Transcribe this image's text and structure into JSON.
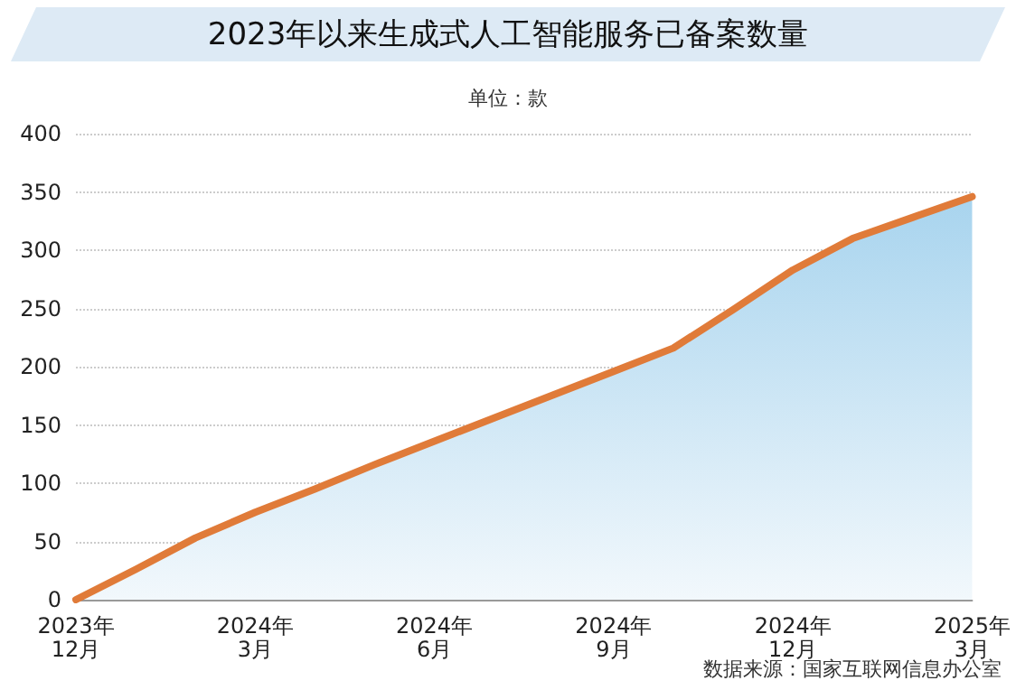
{
  "chart_data": {
    "type": "area",
    "title": "2023年以来生成式人工智能服务已备案数量",
    "subtitle": "单位：款",
    "categories": [
      "2023年\n12月",
      null,
      null,
      "2024年\n3月",
      null,
      null,
      "2024年\n6月",
      null,
      null,
      "2024年\n9月",
      null,
      null,
      "2024年\n12月",
      null,
      null,
      "2025年\n3月"
    ],
    "series": [
      {
        "color": "#e07b39",
        "values": [
          0,
          26,
          53,
          75,
          95,
          116,
          136,
          156,
          176,
          196,
          216,
          249,
          283,
          310,
          328,
          346
        ]
      }
    ],
    "ylim": [
      0,
      400
    ],
    "yticks": [
      0,
      50,
      100,
      150,
      200,
      250,
      300,
      350,
      400
    ],
    "grid": "y",
    "marker": "none",
    "line_style": "solid",
    "annotations": [
      "数据来源：国家互联网信息办公室"
    ]
  }
}
